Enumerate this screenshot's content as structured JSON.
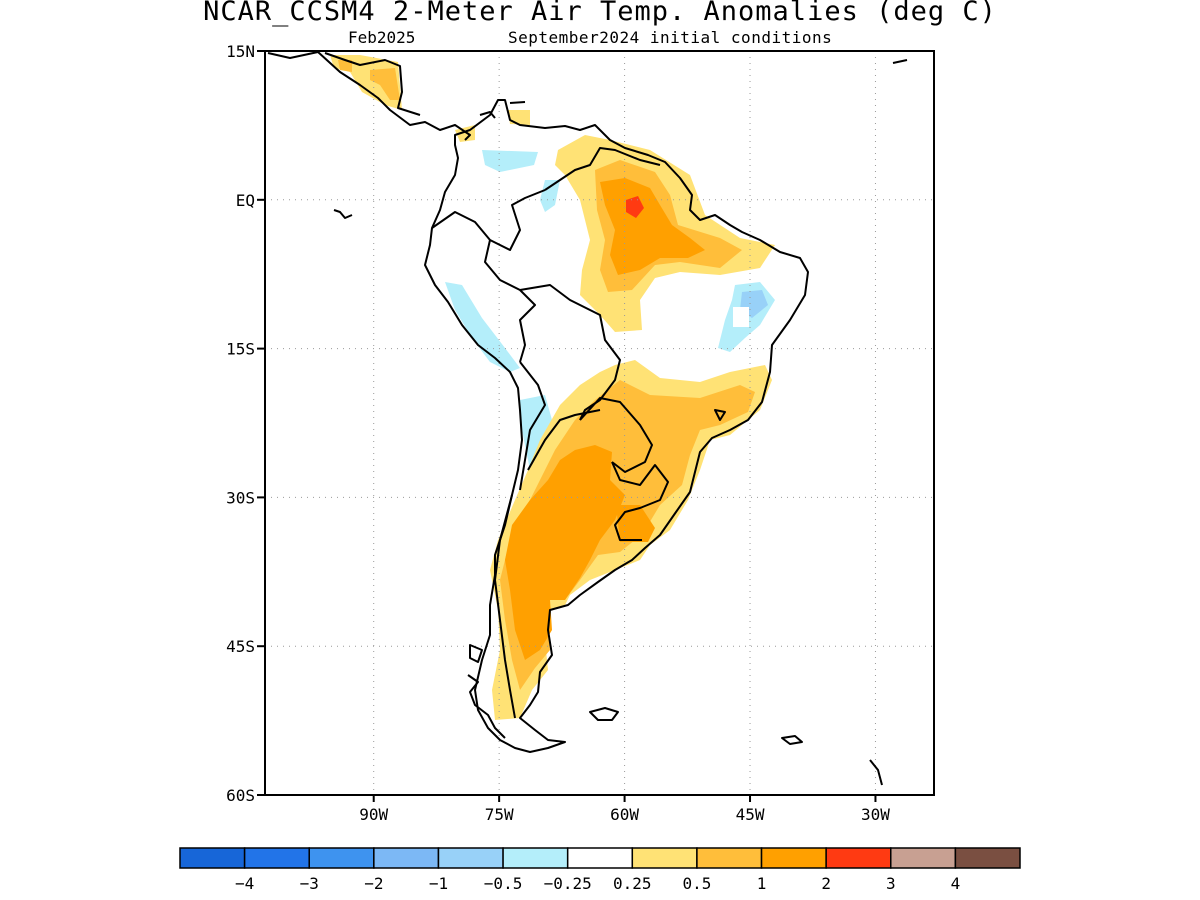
{
  "title": "NCAR_CCSM4 2-Meter Air Temp. Anomalies (deg C)",
  "valid_label": "Feb2025",
  "init_label": "September2024 initial conditions",
  "map": {
    "lon_range": [
      -103,
      -23
    ],
    "lat_range": [
      -60,
      15
    ],
    "lat_ticks": [
      {
        "value": 15,
        "label": "15N"
      },
      {
        "value": 0,
        "label": "EQ"
      },
      {
        "value": -15,
        "label": "15S"
      },
      {
        "value": -30,
        "label": "30S"
      },
      {
        "value": -45,
        "label": "45S"
      },
      {
        "value": -60,
        "label": "60S"
      }
    ],
    "lon_ticks": [
      {
        "value": -90,
        "label": "90W"
      },
      {
        "value": -75,
        "label": "75W"
      },
      {
        "value": -60,
        "label": "60W"
      },
      {
        "value": -45,
        "label": "45W"
      },
      {
        "value": -30,
        "label": "30W"
      }
    ],
    "grid": "dotted"
  },
  "colorbar": {
    "colors": [
      "#1766d8",
      "#2274e8",
      "#3e93ef",
      "#7cb8f5",
      "#98d1f8",
      "#b4eefa",
      "#ffffff",
      "#ffe275",
      "#ffbe3a",
      "#ffa000",
      "#ff3a12",
      "#c8a092",
      "#7a4f41"
    ],
    "labels": [
      "−4",
      "−3",
      "−2",
      "−1",
      "−0.5",
      "−0.25",
      "0.25",
      "0.5",
      "1",
      "2",
      "3",
      "4"
    ]
  }
}
